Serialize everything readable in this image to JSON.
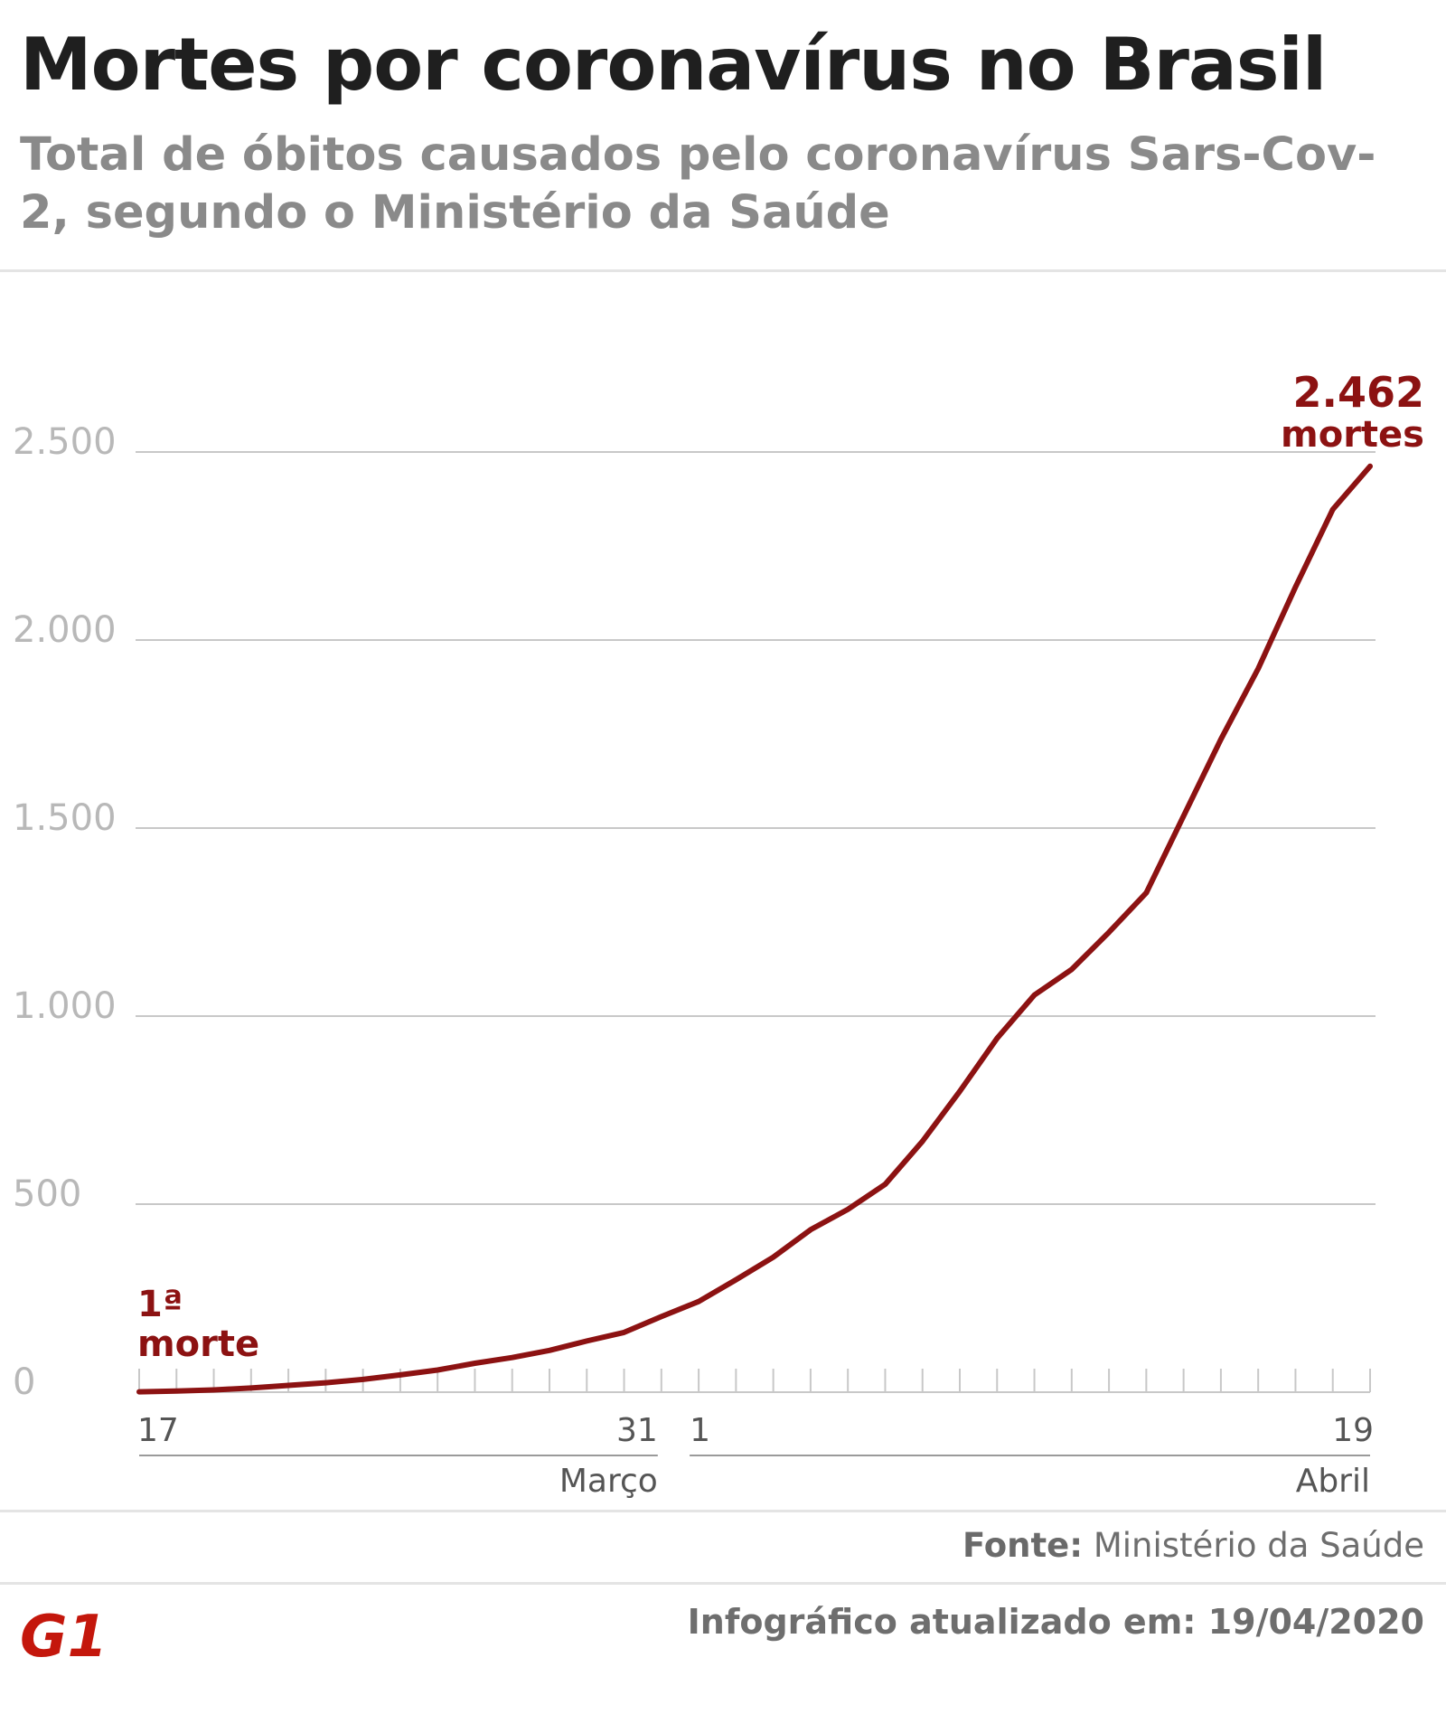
{
  "title": "Mortes por coronavírus no Brasil",
  "subtitle": "Total de óbitos causados pelo coronavírus Sars-Cov-2, segundo o Ministério da Saúde",
  "source_label": "Fonte:",
  "source_value": "Ministério da Saúde",
  "updated": "Infográfico atualizado em: 19/04/2020",
  "logo_text": "G1",
  "colors": {
    "line": "#8c1212",
    "grid": "#c8c8c8",
    "tick_text": "#b8b8b8",
    "axis_text": "#555555",
    "logo": "#c4170c"
  },
  "chart_data": {
    "type": "line",
    "title": "Mortes por coronavírus no Brasil",
    "xlabel": "",
    "ylabel": "",
    "ylim": [
      0,
      2500
    ],
    "yticks": [
      0,
      500,
      1000,
      1500,
      2000,
      2500
    ],
    "ytick_labels": [
      "0",
      "500",
      "1.000",
      "1.500",
      "2.000",
      "2.500"
    ],
    "grid": true,
    "x": [
      "17/03",
      "18/03",
      "19/03",
      "20/03",
      "21/03",
      "22/03",
      "23/03",
      "24/03",
      "25/03",
      "26/03",
      "27/03",
      "28/03",
      "29/03",
      "30/03",
      "31/03",
      "01/04",
      "02/04",
      "03/04",
      "04/04",
      "05/04",
      "06/04",
      "07/04",
      "08/04",
      "09/04",
      "10/04",
      "11/04",
      "12/04",
      "13/04",
      "14/04",
      "15/04",
      "16/04",
      "17/04",
      "18/04",
      "19/04"
    ],
    "series": [
      {
        "values": [
          1,
          3,
          6,
          11,
          18,
          25,
          34,
          46,
          59,
          77,
          92,
          111,
          136,
          159,
          201,
          241,
          299,
          359,
          432,
          486,
          553,
          667,
          800,
          941,
          1056,
          1124,
          1223,
          1328,
          1532,
          1736,
          1924,
          2141,
          2347,
          2462
        ]
      }
    ],
    "x_labels": [
      {
        "text": "17",
        "index": 0
      },
      {
        "text": "31",
        "index": 14
      },
      {
        "text": "1",
        "index": 15
      },
      {
        "text": "19",
        "index": 33
      }
    ],
    "groups": [
      {
        "label": "Março",
        "from": 0,
        "to": 14
      },
      {
        "label": "Abril",
        "from": 15,
        "to": 33
      }
    ],
    "annotations": [
      {
        "line1": "1ª",
        "line2": "morte"
      },
      {
        "line1": "2.462",
        "line2": "mortes"
      }
    ]
  }
}
